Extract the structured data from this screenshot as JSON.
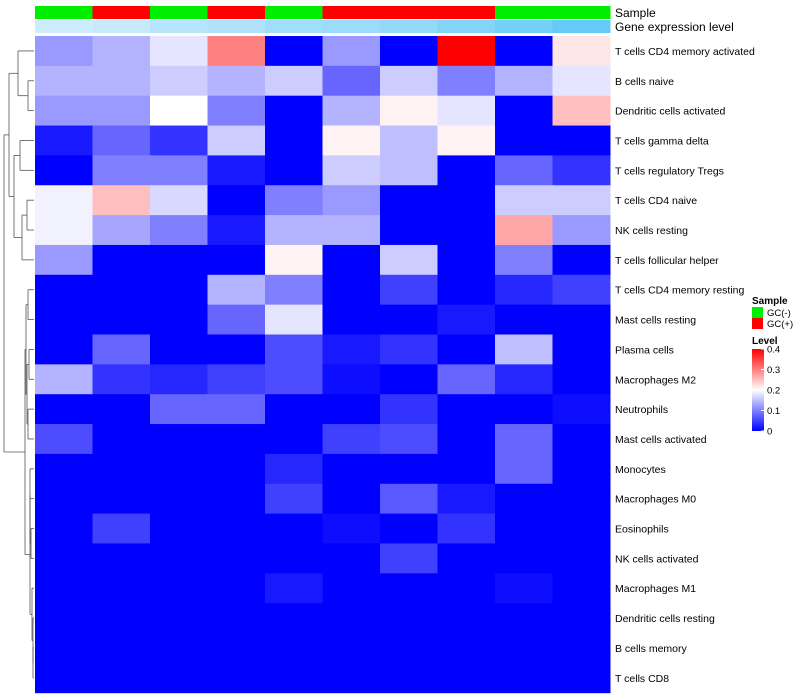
{
  "chart_data": {
    "type": "heatmap",
    "annotation_rows": [
      {
        "label": "Sample",
        "type": "categorical",
        "values": [
          "GC(-)",
          "GC(+)",
          "GC(-)",
          "GC(+)",
          "GC(-)",
          "GC(+)",
          "GC(+)",
          "GC(+)",
          "GC(-)",
          "GC(-)"
        ]
      },
      {
        "label": "Gene expression level",
        "type": "continuous",
        "values": [
          0.15,
          0.2,
          0.3,
          0.35,
          0.45,
          0.5,
          0.55,
          0.65,
          0.75,
          0.85
        ]
      }
    ],
    "rows": [
      "T cells CD4 memory activated",
      "B cells naive",
      "Dendritic cells activated",
      "T cells gamma delta",
      "T cells regulatory  Tregs",
      "T cells CD4 naive",
      "NK cells resting",
      "T cells follicular helper",
      "T cells CD4 memory resting",
      "Mast cells resting",
      "Plasma cells",
      "Macrophages M2",
      "Neutrophils",
      "Mast cells activated",
      "Monocytes",
      "Macrophages M0",
      "Eosinophils",
      "NK cells activated",
      "Macrophages M1",
      "Dendritic cells resting",
      "B cells memory",
      "T cells CD8"
    ],
    "values": [
      [
        0.12,
        0.14,
        0.18,
        0.3,
        0.0,
        0.12,
        0.0,
        0.4,
        0.0,
        0.22
      ],
      [
        0.14,
        0.14,
        0.16,
        0.14,
        0.16,
        0.08,
        0.16,
        0.1,
        0.14,
        0.18
      ],
      [
        0.12,
        0.12,
        0.2,
        0.1,
        0.0,
        0.14,
        0.21,
        0.18,
        0.0,
        0.25
      ],
      [
        0.02,
        0.08,
        0.04,
        0.16,
        0.0,
        0.21,
        0.15,
        0.21,
        0.0,
        0.0
      ],
      [
        0.0,
        0.1,
        0.1,
        0.02,
        0.0,
        0.16,
        0.15,
        0.0,
        0.08,
        0.04
      ],
      [
        0.19,
        0.25,
        0.17,
        0.0,
        0.1,
        0.12,
        0.0,
        0.0,
        0.16,
        0.16
      ],
      [
        0.19,
        0.13,
        0.1,
        0.02,
        0.14,
        0.14,
        0.0,
        0.0,
        0.27,
        0.12
      ],
      [
        0.12,
        0.0,
        0.0,
        0.0,
        0.21,
        0.0,
        0.16,
        0.0,
        0.1,
        0.0
      ],
      [
        0.0,
        0.0,
        0.0,
        0.14,
        0.1,
        0.0,
        0.05,
        0.0,
        0.03,
        0.05
      ],
      [
        0.0,
        0.0,
        0.0,
        0.08,
        0.18,
        0.0,
        0.0,
        0.02,
        0.0,
        0.0
      ],
      [
        0.0,
        0.08,
        0.0,
        0.0,
        0.06,
        0.02,
        0.04,
        0.0,
        0.15,
        0.0
      ],
      [
        0.14,
        0.04,
        0.03,
        0.05,
        0.06,
        0.01,
        0.0,
        0.08,
        0.03,
        0.0
      ],
      [
        0.0,
        0.0,
        0.08,
        0.08,
        0.0,
        0.0,
        0.04,
        0.0,
        0.0,
        0.01
      ],
      [
        0.06,
        0.0,
        0.0,
        0.0,
        0.0,
        0.05,
        0.06,
        0.0,
        0.08,
        0.0
      ],
      [
        0.0,
        0.0,
        0.0,
        0.0,
        0.03,
        0.0,
        0.0,
        0.0,
        0.08,
        0.0
      ],
      [
        0.0,
        0.0,
        0.0,
        0.0,
        0.05,
        0.0,
        0.07,
        0.02,
        0.0,
        0.0
      ],
      [
        0.0,
        0.05,
        0.0,
        0.0,
        0.0,
        0.01,
        0.0,
        0.04,
        0.0,
        0.0
      ],
      [
        0.0,
        0.0,
        0.0,
        0.0,
        0.0,
        0.0,
        0.05,
        0.0,
        0.0,
        0.0
      ],
      [
        0.0,
        0.0,
        0.0,
        0.0,
        0.02,
        0.0,
        0.0,
        0.0,
        0.01,
        0.0
      ],
      [
        0.0,
        0.0,
        0.0,
        0.0,
        0.0,
        0.0,
        0.0,
        0.0,
        0.0,
        0.0
      ],
      [
        0.0,
        0.0,
        0.0,
        0.0,
        0.0,
        0.0,
        0.0,
        0.0,
        0.0,
        0.0
      ],
      [
        0.0,
        0.0,
        0.0,
        0.0,
        0.0,
        0.0,
        0.0,
        0.0,
        0.0,
        0.0
      ]
    ],
    "color_scale": {
      "low": "#0000ff",
      "mid": "#ffffff",
      "high": "#ff0000",
      "range": [
        0,
        0.4
      ],
      "mid_value": 0.2
    },
    "legend_sample": {
      "title": "Sample",
      "items": [
        {
          "label": "GC(-)",
          "color": "#00ee00"
        },
        {
          "label": "GC(+)",
          "color": "#ff0000"
        }
      ]
    },
    "legend_level": {
      "title": "Level",
      "ticks": [
        "0.4",
        "0.3",
        "0.2",
        "0.1",
        "0"
      ]
    },
    "gene_level_colors": {
      "low": "#e4f4fd",
      "high": "#4fc3f7"
    },
    "row_dendrogram": true,
    "legend_position": "right"
  }
}
